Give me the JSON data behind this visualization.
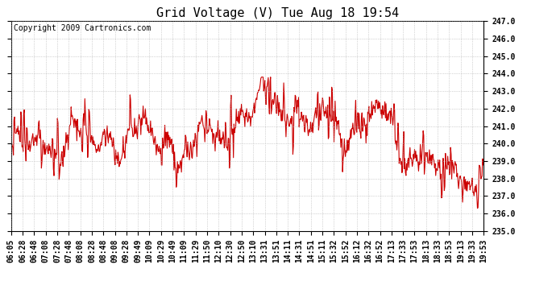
{
  "title": "Grid Voltage (V) Tue Aug 18 19:54",
  "copyright": "Copyright 2009 Cartronics.com",
  "ylabel_right_min": 235.0,
  "ylabel_right_max": 247.0,
  "ylabel_right_step": 1.0,
  "line_color": "#cc0000",
  "line_width": 0.8,
  "background_color": "#ffffff",
  "plot_bg_color": "#ffffff",
  "grid_color": "#b0b0b0",
  "grid_style": ":",
  "title_fontsize": 11,
  "copyright_fontsize": 7,
  "tick_label_fontsize": 7,
  "x_tick_labels": [
    "06:05",
    "06:28",
    "06:48",
    "07:08",
    "07:28",
    "07:48",
    "08:08",
    "08:28",
    "08:48",
    "09:08",
    "09:28",
    "09:49",
    "10:09",
    "10:29",
    "10:49",
    "11:09",
    "11:29",
    "11:50",
    "12:10",
    "12:30",
    "12:50",
    "13:10",
    "13:31",
    "13:51",
    "14:11",
    "14:31",
    "14:51",
    "15:11",
    "15:32",
    "15:52",
    "16:12",
    "16:32",
    "16:52",
    "17:13",
    "17:33",
    "17:53",
    "18:13",
    "18:33",
    "18:53",
    "19:13",
    "19:33",
    "19:53"
  ],
  "seed": 17
}
